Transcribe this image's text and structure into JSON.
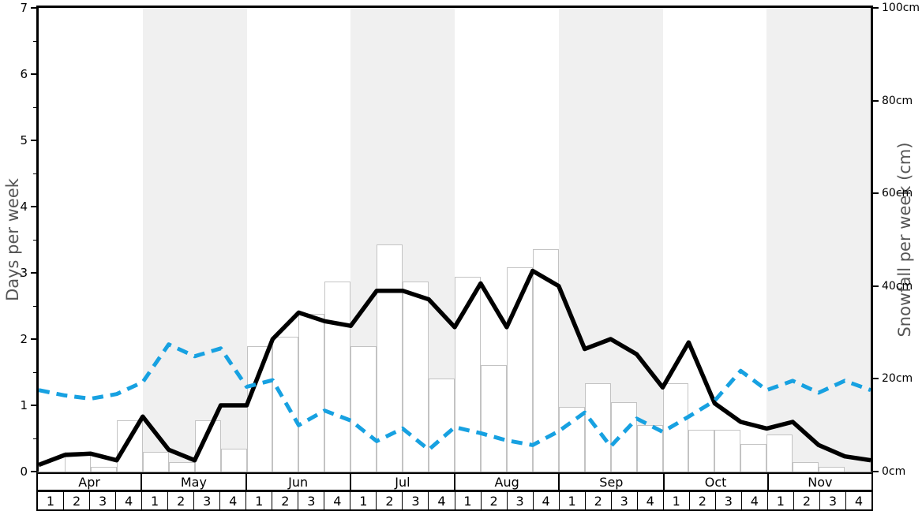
{
  "chart_data": {
    "type": "mixed",
    "title": "",
    "months": [
      "Apr",
      "May",
      "Jun",
      "Jul",
      "Aug",
      "Sep",
      "Oct",
      "Nov"
    ],
    "week_labels": [
      "1",
      "2",
      "3",
      "4"
    ],
    "shaded_month_indices": [
      1,
      3,
      5,
      7
    ],
    "band_color": "#f0f0f0",
    "background": "#ffffff",
    "left_axis": {
      "label": "Days per week",
      "range": [
        0,
        7
      ],
      "tick_labels": [
        "0",
        "1",
        "2",
        "3",
        "4",
        "5",
        "6",
        "7"
      ],
      "minor_tick_step": 0.5,
      "grid": false
    },
    "right_axis": {
      "label": "Snowfall per week (cm)",
      "range": [
        0,
        100
      ],
      "tick_labels": [
        "0cm",
        "20cm",
        "40cm",
        "60cm",
        "80cm",
        "100cm"
      ]
    },
    "series": [
      {
        "name": "black-solid-line",
        "type": "line",
        "axis": "left",
        "color": "#000000",
        "line_style": "solid",
        "values": [
          0.1,
          0.25,
          0.27,
          0.17,
          0.83,
          0.33,
          0.17,
          1.0,
          1.0,
          2.0,
          2.4,
          2.27,
          2.2,
          2.73,
          2.73,
          2.6,
          2.18,
          2.84,
          2.18,
          3.03,
          2.8,
          1.85,
          2.0,
          1.77,
          1.27,
          1.95,
          1.03,
          0.75,
          0.65,
          0.75,
          0.4,
          0.23,
          0.17
        ]
      },
      {
        "name": "blue-dashed-line",
        "type": "line",
        "axis": "left",
        "color": "#17a1e1",
        "line_style": "dashed",
        "values": [
          1.23,
          1.15,
          1.1,
          1.17,
          1.35,
          1.92,
          1.74,
          1.86,
          1.28,
          1.38,
          0.7,
          0.92,
          0.77,
          0.46,
          0.65,
          0.33,
          0.67,
          0.58,
          0.47,
          0.4,
          0.61,
          0.89,
          0.38,
          0.8,
          0.6,
          0.83,
          1.07,
          1.52,
          1.23,
          1.37,
          1.19,
          1.37,
          1.23
        ]
      },
      {
        "name": "snowfall-bars",
        "type": "bar",
        "axis": "right",
        "fill": "#ffffff",
        "border_color": "#c3c3c3",
        "values_cm": [
          0,
          4.2,
          1.1,
          11,
          4.2,
          2,
          11,
          5,
          27,
          29,
          34,
          41,
          27,
          49,
          41,
          20,
          42,
          23,
          44,
          48,
          14,
          19,
          15,
          10,
          19,
          9,
          9,
          6,
          8,
          2,
          1,
          0
        ]
      }
    ]
  }
}
